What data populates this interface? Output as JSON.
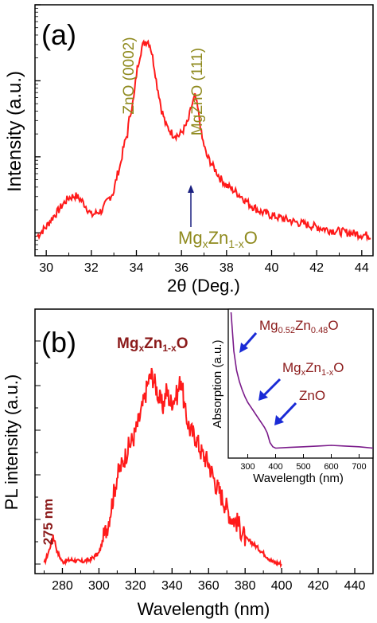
{
  "panel_a": {
    "label": "(a)",
    "xlabel": "2θ (Deg.)",
    "ylabel": "Intensity (a.u.)",
    "peak_zno": "ZnO (0002)",
    "peak_mgzno": "MgZnO (111)",
    "arrow_mg": "Mg",
    "arrow_x": "x",
    "arrow_zn": "Zn",
    "arrow_sub": "1-x",
    "arrow_o": "O"
  },
  "panel_b": {
    "label": "(b)",
    "xlabel": "Wavelength (nm)",
    "ylabel": "PL intensity (a.u.)",
    "peak275": "275 nm",
    "peak_mg": "Mg",
    "peak_x": "x",
    "peak_zn": "Zn",
    "peak_sub": "1-x",
    "peak_o": "O"
  },
  "inset": {
    "xlabel": "Wavelength (nm)",
    "ylabel": "Absorption (a.u.)",
    "l1_mg": "Mg",
    "l1_s1": "0.52",
    "l1_zn": "Zn",
    "l1_s2": "0.48",
    "l1_o": "O",
    "l2_mg": "Mg",
    "l2_s1": "x",
    "l2_zn": "Zn",
    "l2_s2": "1-x",
    "l2_o": "O",
    "l3": "ZnO"
  },
  "colors": {
    "curve": "#ff1a1a",
    "olive": "#8f8a1e",
    "darkred": "#8b1a1a",
    "inset_curve": "#7a1a8a",
    "arrow_blue": "#1a2bd6"
  },
  "chart_data": [
    {
      "type": "line",
      "title": "",
      "xlabel": "2θ (Deg.)",
      "ylabel": "Intensity (a.u.)",
      "xlim": [
        29.5,
        44.5
      ],
      "yscale": "log",
      "ylim": [
        50,
        100000
      ],
      "xticks": [
        30,
        32,
        34,
        36,
        38,
        40,
        42,
        44
      ],
      "series": [
        {
          "x": [
            29.6,
            30.0,
            30.5,
            31.0,
            31.3,
            31.6,
            32.0,
            32.5,
            33.0,
            33.3,
            33.6,
            33.9,
            34.1,
            34.25,
            34.4,
            34.5,
            34.6,
            34.75,
            34.9,
            35.1,
            35.3,
            35.6,
            35.9,
            36.1,
            36.3,
            36.45,
            36.6,
            36.75,
            36.9,
            37.1,
            37.4,
            37.7,
            38.0,
            38.5,
            39.0,
            39.5,
            40.0,
            40.5,
            41.0,
            41.5,
            42.0,
            42.5,
            43.0,
            43.5,
            44.0,
            44.4
          ],
          "y": [
            90,
            120,
            190,
            290,
            310,
            260,
            170,
            200,
            350,
            800,
            2000,
            6000,
            18000,
            28000,
            33000,
            34000,
            30000,
            18000,
            9000,
            4300,
            2600,
            2000,
            1900,
            2300,
            2900,
            4600,
            6200,
            3800,
            1800,
            1050,
            750,
            530,
            420,
            330,
            240,
            190,
            170,
            155,
            140,
            130,
            120,
            110,
            105,
            100,
            95,
            92
          ]
        }
      ]
    },
    {
      "type": "line",
      "title": "",
      "xlabel": "Wavelength (nm)",
      "ylabel": "PL intensity (a.u.)",
      "xlim": [
        265,
        450
      ],
      "xticks": [
        280,
        300,
        320,
        340,
        360,
        380,
        400,
        420,
        440
      ],
      "ylim": [
        0,
        100
      ],
      "series": [
        {
          "x": [
            270,
            273,
            275,
            277,
            280,
            285,
            290,
            295,
            300,
            305,
            308,
            310,
            313,
            316,
            319,
            322,
            325,
            327,
            329,
            331,
            333,
            335,
            337,
            339,
            341,
            343,
            345,
            347,
            350,
            353,
            356,
            360,
            364,
            368,
            372,
            376,
            380,
            385,
            390,
            395,
            400
          ],
          "y": [
            3,
            10,
            17,
            9,
            4,
            5,
            4,
            5,
            8,
            22,
            35,
            44,
            50,
            57,
            62,
            70,
            80,
            88,
            91,
            86,
            80,
            76,
            84,
            78,
            80,
            82,
            90,
            74,
            65,
            62,
            55,
            50,
            40,
            33,
            25,
            22,
            15,
            12,
            8,
            4,
            3
          ]
        }
      ]
    },
    {
      "type": "line",
      "title": "",
      "xlabel": "Wavelength (nm)",
      "ylabel": "Absorption (a.u.)",
      "xlim": [
        230,
        750
      ],
      "xticks": [
        300,
        400,
        500,
        600,
        700
      ],
      "ylim": [
        0,
        1
      ],
      "series": [
        {
          "x": [
            240,
            250,
            260,
            270,
            280,
            290,
            300,
            310,
            320,
            330,
            340,
            350,
            360,
            370,
            380,
            390,
            400,
            450,
            500,
            550,
            600,
            650,
            700,
            750
          ],
          "y": [
            1.0,
            0.72,
            0.58,
            0.5,
            0.44,
            0.39,
            0.35,
            0.32,
            0.29,
            0.26,
            0.23,
            0.2,
            0.17,
            0.13,
            0.06,
            0.03,
            0.02,
            0.025,
            0.03,
            0.035,
            0.04,
            0.035,
            0.03,
            0.02
          ]
        }
      ]
    }
  ]
}
